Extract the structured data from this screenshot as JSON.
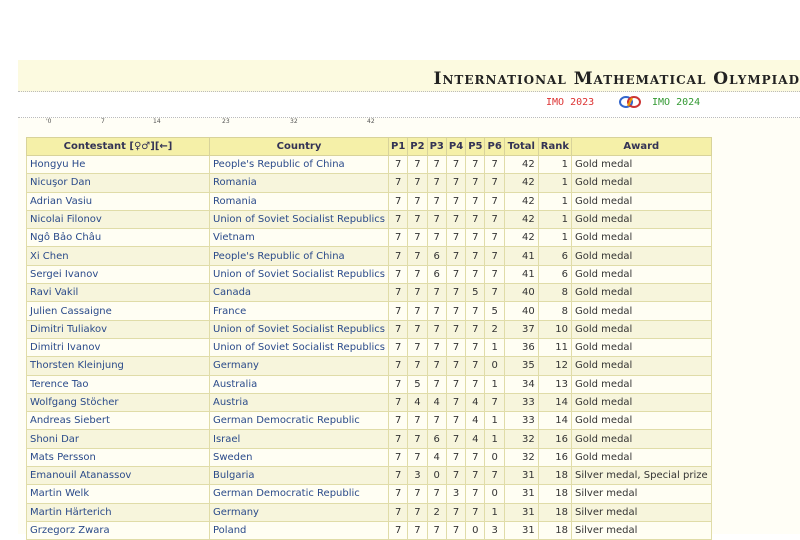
{
  "header": {
    "title": "International Mathematical Olympiad",
    "prev": "IMO 2023",
    "next": "IMO 2024",
    "logo_icon": "imo-logo-icon"
  },
  "ticks": [
    "'0",
    "7",
    "14",
    "23",
    "32",
    "42"
  ],
  "table": {
    "columns": [
      "Contestant [♀♂][←]",
      "Country",
      "P1",
      "P2",
      "P3",
      "P4",
      "P5",
      "P6",
      "Total",
      "Rank",
      "Award"
    ],
    "rows": [
      [
        "Hongyu He",
        "People's Republic of China",
        "7",
        "7",
        "7",
        "7",
        "7",
        "7",
        "42",
        "1",
        "Gold medal"
      ],
      [
        "Nicuşor Dan",
        "Romania",
        "7",
        "7",
        "7",
        "7",
        "7",
        "7",
        "42",
        "1",
        "Gold medal"
      ],
      [
        "Adrian Vasiu",
        "Romania",
        "7",
        "7",
        "7",
        "7",
        "7",
        "7",
        "42",
        "1",
        "Gold medal"
      ],
      [
        "Nicolai Filonov",
        "Union of Soviet Socialist Republics",
        "7",
        "7",
        "7",
        "7",
        "7",
        "7",
        "42",
        "1",
        "Gold medal"
      ],
      [
        "Ngô Bảo Châu",
        "Vietnam",
        "7",
        "7",
        "7",
        "7",
        "7",
        "7",
        "42",
        "1",
        "Gold medal"
      ],
      [
        "Xi Chen",
        "People's Republic of China",
        "7",
        "7",
        "6",
        "7",
        "7",
        "7",
        "41",
        "6",
        "Gold medal"
      ],
      [
        "Sergei Ivanov",
        "Union of Soviet Socialist Republics",
        "7",
        "7",
        "6",
        "7",
        "7",
        "7",
        "41",
        "6",
        "Gold medal"
      ],
      [
        "Ravi Vakil",
        "Canada",
        "7",
        "7",
        "7",
        "7",
        "5",
        "7",
        "40",
        "8",
        "Gold medal"
      ],
      [
        "Julien Cassaigne",
        "France",
        "7",
        "7",
        "7",
        "7",
        "7",
        "5",
        "40",
        "8",
        "Gold medal"
      ],
      [
        "Dimitri Tuliakov",
        "Union of Soviet Socialist Republics",
        "7",
        "7",
        "7",
        "7",
        "7",
        "2",
        "37",
        "10",
        "Gold medal"
      ],
      [
        "Dimitri Ivanov",
        "Union of Soviet Socialist Republics",
        "7",
        "7",
        "7",
        "7",
        "7",
        "1",
        "36",
        "11",
        "Gold medal"
      ],
      [
        "Thorsten Kleinjung",
        "Germany",
        "7",
        "7",
        "7",
        "7",
        "7",
        "0",
        "35",
        "12",
        "Gold medal"
      ],
      [
        "Terence Tao",
        "Australia",
        "7",
        "5",
        "7",
        "7",
        "7",
        "1",
        "34",
        "13",
        "Gold medal"
      ],
      [
        "Wolfgang Stöcher",
        "Austria",
        "7",
        "4",
        "4",
        "7",
        "4",
        "7",
        "33",
        "14",
        "Gold medal"
      ],
      [
        "Andreas Siebert",
        "German Democratic Republic",
        "7",
        "7",
        "7",
        "7",
        "4",
        "1",
        "33",
        "14",
        "Gold medal"
      ],
      [
        "Shoni Dar",
        "Israel",
        "7",
        "7",
        "6",
        "7",
        "4",
        "1",
        "32",
        "16",
        "Gold medal"
      ],
      [
        "Mats Persson",
        "Sweden",
        "7",
        "7",
        "4",
        "7",
        "7",
        "0",
        "32",
        "16",
        "Gold medal"
      ],
      [
        "Emanouil Atanassov",
        "Bulgaria",
        "7",
        "3",
        "0",
        "7",
        "7",
        "7",
        "31",
        "18",
        "Silver medal, Special prize"
      ],
      [
        "Martin Welk",
        "German Democratic Republic",
        "7",
        "7",
        "7",
        "3",
        "7",
        "0",
        "31",
        "18",
        "Silver medal"
      ],
      [
        "Martin Härterich",
        "Germany",
        "7",
        "7",
        "2",
        "7",
        "7",
        "1",
        "31",
        "18",
        "Silver medal"
      ],
      [
        "Grzegorz Zwara",
        "Poland",
        "7",
        "7",
        "7",
        "7",
        "0",
        "3",
        "31",
        "18",
        "Silver medal"
      ]
    ]
  }
}
